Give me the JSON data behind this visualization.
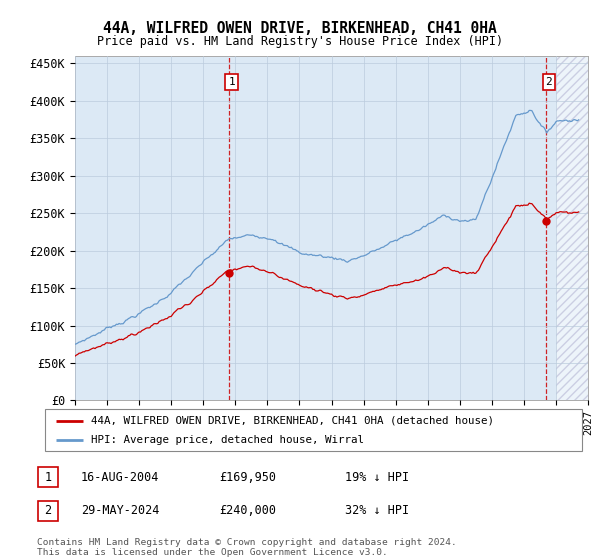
{
  "title": "44A, WILFRED OWEN DRIVE, BIRKENHEAD, CH41 0HA",
  "subtitle": "Price paid vs. HM Land Registry's House Price Index (HPI)",
  "ylabel_ticks": [
    "£0",
    "£50K",
    "£100K",
    "£150K",
    "£200K",
    "£250K",
    "£300K",
    "£350K",
    "£400K",
    "£450K"
  ],
  "ytick_values": [
    0,
    50000,
    100000,
    150000,
    200000,
    250000,
    300000,
    350000,
    400000,
    450000
  ],
  "ylim": [
    0,
    460000
  ],
  "xlim_start": 1995.0,
  "xlim_end": 2027.0,
  "hpi_color": "#6699cc",
  "price_color": "#cc0000",
  "chart_bg": "#dce9f5",
  "purchase1_date": 2004.62,
  "purchase1_price": 169950,
  "purchase2_date": 2024.41,
  "purchase2_price": 240000,
  "legend_label1": "44A, WILFRED OWEN DRIVE, BIRKENHEAD, CH41 0HA (detached house)",
  "legend_label2": "HPI: Average price, detached house, Wirral",
  "table_row1": [
    "1",
    "16-AUG-2004",
    "£169,950",
    "19% ↓ HPI"
  ],
  "table_row2": [
    "2",
    "29-MAY-2024",
    "£240,000",
    "32% ↓ HPI"
  ],
  "footer_text": "Contains HM Land Registry data © Crown copyright and database right 2024.\nThis data is licensed under the Open Government Licence v3.0.",
  "background_color": "#ffffff",
  "grid_color": "#bbccdd"
}
